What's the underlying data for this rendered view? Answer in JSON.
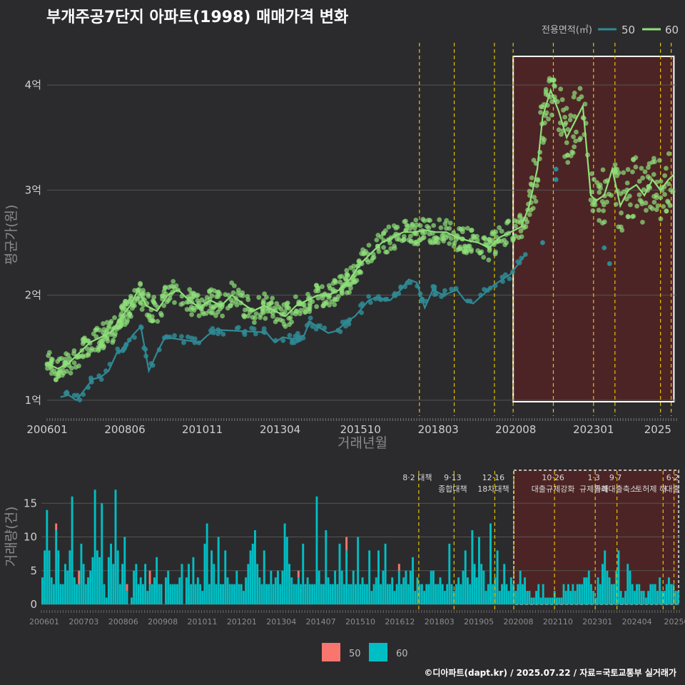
{
  "title": "부개주공7단지 아파트(1998) 매매가격 변화",
  "credit": "©디아파트(dapt.kr) / 2025.07.22 / 자료=국토교통부 실거래가",
  "colors": {
    "s50_line": "#2f8a94",
    "s60_line": "#8fe07a",
    "bar50": "#f8766d",
    "bar60": "#00bfc4",
    "highlight": "#5a2323",
    "vline": "#e6c200"
  },
  "legend_top": {
    "title": "전용면적(㎡)",
    "items": [
      "50",
      "60"
    ]
  },
  "legend_bottom": {
    "items": [
      "50",
      "60"
    ]
  },
  "chart_data": [
    {
      "type": "scatter",
      "title": "부개주공7단지 아파트(1998) 매매가격 변화",
      "xlabel": "거래년월",
      "ylabel": "평균가(원)",
      "x_ticks": [
        "200601",
        "200806",
        "201011",
        "201304",
        "201510",
        "201803",
        "202008",
        "202301",
        "2025"
      ],
      "y_ticks": [
        "1억",
        "2억",
        "3억",
        "4억"
      ],
      "ylim": [
        0.85,
        4.3
      ],
      "policy_lines_x": [
        "2017-08",
        "2018-09",
        "2019-12",
        "2020-07",
        "2021-10",
        "2023-01",
        "2023-09",
        "2025-02",
        "2025-06"
      ],
      "highlight": {
        "from": "2020-07",
        "to": "2025-07"
      },
      "series": [
        {
          "name": "50",
          "trend": [
            [
              "2006-06",
              1.03
            ],
            [
              "2006-09",
              1.05
            ],
            [
              "2006-12",
              1.0
            ],
            [
              "2007-03",
              1.1
            ],
            [
              "2007-06",
              1.2
            ],
            [
              "2007-09",
              1.22
            ],
            [
              "2007-12",
              1.28
            ],
            [
              "2008-03",
              1.45
            ],
            [
              "2008-06",
              1.5
            ],
            [
              "2008-09",
              1.62
            ],
            [
              "2008-12",
              1.7
            ],
            [
              "2009-03",
              1.28
            ],
            [
              "2009-06",
              1.45
            ],
            [
              "2009-09",
              1.6
            ],
            [
              "2010-10",
              1.55
            ],
            [
              "2011-01",
              1.62
            ],
            [
              "2011-04",
              1.67
            ],
            [
              "2012-08",
              1.65
            ],
            [
              "2012-11",
              1.64
            ],
            [
              "2013-02",
              1.55
            ],
            [
              "2013-05",
              1.6
            ],
            [
              "2013-09",
              1.58
            ],
            [
              "2014-01",
              1.62
            ],
            [
              "2014-03",
              1.75
            ],
            [
              "2014-06",
              1.7
            ],
            [
              "2014-10",
              1.64
            ],
            [
              "2015-01",
              1.66
            ],
            [
              "2015-05",
              1.75
            ],
            [
              "2015-08",
              1.8
            ],
            [
              "2016-01",
              1.95
            ],
            [
              "2016-04",
              1.98
            ],
            [
              "2016-09",
              1.95
            ],
            [
              "2017-01",
              2.05
            ],
            [
              "2017-04",
              2.15
            ],
            [
              "2017-07",
              2.12
            ],
            [
              "2017-10",
              1.88
            ],
            [
              "2018-01",
              2.05
            ],
            [
              "2018-05",
              2.0
            ],
            [
              "2018-10",
              2.05
            ],
            [
              "2019-01",
              1.95
            ],
            [
              "2019-04",
              1.92
            ],
            [
              "2019-12",
              2.1
            ],
            [
              "2020-03",
              2.15
            ],
            [
              "2020-06",
              2.2
            ],
            [
              "2020-09",
              2.3
            ],
            [
              "2020-12",
              2.4
            ]
          ],
          "points": [
            [
              "2021-06",
              2.5
            ],
            [
              "2021-11",
              3.2
            ],
            [
              "2021-11",
              3.1
            ],
            [
              "2023-05",
              2.45
            ],
            [
              "2023-07",
              2.3
            ]
          ]
        },
        {
          "name": "60",
          "trend": [
            [
              "2006-01",
              1.35
            ],
            [
              "2006-05",
              1.3
            ],
            [
              "2006-09",
              1.35
            ],
            [
              "2007-01",
              1.45
            ],
            [
              "2007-05",
              1.55
            ],
            [
              "2007-09",
              1.6
            ],
            [
              "2008-01",
              1.65
            ],
            [
              "2008-05",
              1.8
            ],
            [
              "2008-08",
              1.9
            ],
            [
              "2008-11",
              2.05
            ],
            [
              "2009-02",
              1.9
            ],
            [
              "2009-06",
              1.85
            ],
            [
              "2009-10",
              2.0
            ],
            [
              "2010-02",
              2.05
            ],
            [
              "2010-06",
              1.95
            ],
            [
              "2010-10",
              1.88
            ],
            [
              "2011-02",
              1.95
            ],
            [
              "2011-06",
              1.9
            ],
            [
              "2011-10",
              2.0
            ],
            [
              "2012-02",
              1.92
            ],
            [
              "2012-06",
              1.85
            ],
            [
              "2012-10",
              1.9
            ],
            [
              "2013-02",
              1.85
            ],
            [
              "2013-06",
              1.8
            ],
            [
              "2013-10",
              1.9
            ],
            [
              "2014-02",
              1.95
            ],
            [
              "2014-06",
              2.0
            ],
            [
              "2014-10",
              2.0
            ],
            [
              "2015-02",
              2.05
            ],
            [
              "2015-06",
              2.15
            ],
            [
              "2015-10",
              2.3
            ],
            [
              "2016-02",
              2.4
            ],
            [
              "2016-06",
              2.5
            ],
            [
              "2016-10",
              2.55
            ],
            [
              "2017-02",
              2.6
            ],
            [
              "2017-06",
              2.6
            ],
            [
              "2017-10",
              2.62
            ],
            [
              "2018-02",
              2.6
            ],
            [
              "2018-06",
              2.6
            ],
            [
              "2018-10",
              2.55
            ],
            [
              "2019-02",
              2.52
            ],
            [
              "2019-06",
              2.5
            ],
            [
              "2019-10",
              2.45
            ],
            [
              "2020-02",
              2.55
            ],
            [
              "2020-06",
              2.6
            ],
            [
              "2020-10",
              2.65
            ],
            [
              "2021-01",
              2.85
            ],
            [
              "2021-04",
              3.2
            ],
            [
              "2021-06",
              3.7
            ],
            [
              "2021-09",
              3.95
            ],
            [
              "2021-12",
              3.75
            ],
            [
              "2022-03",
              3.5
            ],
            [
              "2022-06",
              3.65
            ],
            [
              "2022-09",
              3.8
            ],
            [
              "2022-12",
              2.95
            ],
            [
              "2023-02",
              2.9
            ],
            [
              "2023-05",
              2.95
            ],
            [
              "2023-08",
              3.2
            ],
            [
              "2023-11",
              2.85
            ],
            [
              "2024-02",
              3.0
            ],
            [
              "2024-05",
              3.05
            ],
            [
              "2024-08",
              2.95
            ],
            [
              "2024-11",
              3.1
            ],
            [
              "2025-02",
              3.0
            ],
            [
              "2025-05",
              3.1
            ],
            [
              "2025-07",
              3.15
            ]
          ]
        }
      ]
    },
    {
      "type": "bar",
      "ylabel": "거래량(건)",
      "y_ticks": [
        "0",
        "5",
        "10",
        "15"
      ],
      "ylim": [
        0,
        20
      ],
      "x_ticks": [
        "200601",
        "200703",
        "200806",
        "200908",
        "201011",
        "201201",
        "201304",
        "201407",
        "201510",
        "201612",
        "201803",
        "201905",
        "202008",
        "202110",
        "202301",
        "202404",
        "20250"
      ],
      "annotations": [
        {
          "x": "2017-08",
          "line1": "8·2 대책",
          "line2": ""
        },
        {
          "x": "2018-09",
          "line1": "9·13",
          "line2": "종합대책"
        },
        {
          "x": "2019-12",
          "line1": "12·16",
          "line2": "18차대책"
        },
        {
          "x": "2021-10",
          "line1": "10·26",
          "line2": "대출규제강화"
        },
        {
          "x": "2023-01",
          "line1": "1·3",
          "line2": "규제완화"
        },
        {
          "x": "2023-09",
          "line1": "9·7",
          "line2": "특례대출축소"
        },
        {
          "x": "2024-10",
          "line1": "",
          "line2": "토허제 해"
        },
        {
          "x": "2025-06",
          "line1": "6·2",
          "line2": "대출"
        }
      ],
      "series": [
        {
          "name": "50",
          "values": [
            0,
            0,
            0,
            0,
            0,
            0,
            1,
            0,
            0,
            0,
            0,
            0,
            0,
            0,
            0,
            0,
            2,
            0,
            0,
            0,
            0,
            0,
            0,
            0,
            0,
            0,
            0,
            0,
            0,
            0,
            0,
            0,
            0,
            0,
            0,
            0,
            0,
            1,
            0,
            0,
            0,
            0,
            0,
            0,
            0,
            0,
            0,
            2,
            0,
            0,
            0,
            0,
            0,
            0,
            0,
            0,
            0,
            0,
            0,
            0,
            0,
            0,
            0,
            0,
            0,
            0,
            0,
            0,
            0,
            0,
            0,
            0,
            0,
            0,
            0,
            0,
            0,
            0,
            0,
            0,
            0,
            0,
            0,
            0,
            0,
            0,
            0,
            0,
            0,
            0,
            0,
            0,
            0,
            0,
            0,
            0,
            0,
            0,
            0,
            0,
            0,
            0,
            0,
            0,
            0,
            0,
            0,
            0,
            0,
            0,
            0,
            0,
            1,
            0,
            0,
            0,
            0,
            0,
            0,
            0,
            0,
            0,
            0,
            0,
            0,
            0,
            0,
            0,
            0,
            0,
            0,
            0,
            0,
            2,
            0,
            0,
            0,
            0,
            0,
            0,
            0,
            0,
            0,
            0,
            0,
            0,
            0,
            0,
            0,
            0,
            0,
            0,
            0,
            0,
            0,
            0,
            1,
            0,
            0,
            0,
            0,
            0,
            0,
            0,
            0,
            0,
            0,
            0,
            0,
            0,
            0,
            0,
            0,
            0,
            0,
            0,
            0,
            0,
            0,
            0,
            0,
            0,
            0,
            0,
            0,
            0,
            0,
            0,
            0,
            0,
            0,
            0,
            0,
            0,
            0,
            0,
            0,
            0,
            0,
            0,
            0,
            0,
            0,
            0,
            0,
            0,
            0,
            0,
            0,
            0,
            0,
            0,
            0,
            0,
            0,
            0,
            0,
            0,
            0,
            0,
            0,
            0,
            0,
            0,
            0,
            0,
            0,
            0,
            0,
            0,
            0,
            0,
            0,
            0,
            0,
            0,
            0,
            0,
            0,
            0,
            0,
            0,
            0,
            0,
            0,
            0,
            0,
            0,
            0,
            0,
            0,
            0,
            0,
            0,
            0,
            0,
            0,
            0,
            0,
            0,
            0,
            0,
            0,
            0,
            0,
            0,
            0,
            0,
            0,
            0,
            0,
            0,
            0,
            0,
            0,
            0,
            0,
            0,
            0,
            0,
            0,
            0,
            0,
            0
          ]
        },
        {
          "name": "60",
          "values": [
            4,
            8,
            14,
            8,
            4,
            3,
            11,
            8,
            3,
            3,
            6,
            5,
            8,
            16,
            4,
            3,
            3,
            9,
            6,
            3,
            4,
            5,
            7,
            17,
            8,
            7,
            15,
            3,
            1,
            7,
            9,
            6,
            17,
            8,
            3,
            6,
            10,
            2,
            0,
            1,
            5,
            6,
            3,
            4,
            3,
            6,
            2,
            3,
            3,
            4,
            7,
            3,
            3,
            0,
            4,
            5,
            3,
            3,
            3,
            3,
            4,
            6,
            0,
            4,
            6,
            3,
            7,
            3,
            4,
            3,
            2,
            9,
            12,
            3,
            8,
            6,
            3,
            10,
            3,
            3,
            8,
            4,
            3,
            3,
            3,
            5,
            3,
            3,
            2,
            4,
            6,
            8,
            9,
            11,
            6,
            4,
            3,
            8,
            3,
            3,
            5,
            3,
            4,
            5,
            3,
            5,
            12,
            10,
            6,
            4,
            3,
            3,
            4,
            3,
            9,
            3,
            4,
            3,
            3,
            3,
            16,
            5,
            3,
            3,
            11,
            4,
            3,
            3,
            5,
            3,
            9,
            5,
            3,
            8,
            3,
            3,
            5,
            3,
            10,
            3,
            4,
            3,
            3,
            8,
            2,
            3,
            4,
            8,
            3,
            5,
            9,
            3,
            3,
            4,
            2,
            3,
            5,
            3,
            4,
            5,
            3,
            5,
            7,
            2,
            4,
            3,
            3,
            2,
            3,
            3,
            5,
            5,
            3,
            3,
            4,
            3,
            2,
            3,
            9,
            3,
            2,
            3,
            4,
            3,
            5,
            8,
            4,
            3,
            11,
            6,
            4,
            10,
            6,
            5,
            2,
            3,
            12,
            3,
            4,
            8,
            2,
            3,
            6,
            3,
            2,
            4,
            3,
            2,
            3,
            5,
            3,
            4,
            2,
            2,
            1,
            1,
            2,
            3,
            1,
            3,
            1,
            1,
            1,
            1,
            2,
            1,
            1,
            1,
            3,
            2,
            3,
            2,
            3,
            2,
            3,
            3,
            3,
            4,
            4,
            5,
            3,
            2,
            1,
            4,
            3,
            6,
            8,
            5,
            4,
            3,
            3,
            5,
            8,
            2,
            1,
            2,
            6,
            5,
            3,
            2,
            3,
            3,
            2,
            2,
            1,
            2,
            3,
            3,
            3,
            2,
            4,
            2,
            2,
            3,
            4,
            3,
            3,
            2,
            2
          ]
        }
      ]
    }
  ]
}
